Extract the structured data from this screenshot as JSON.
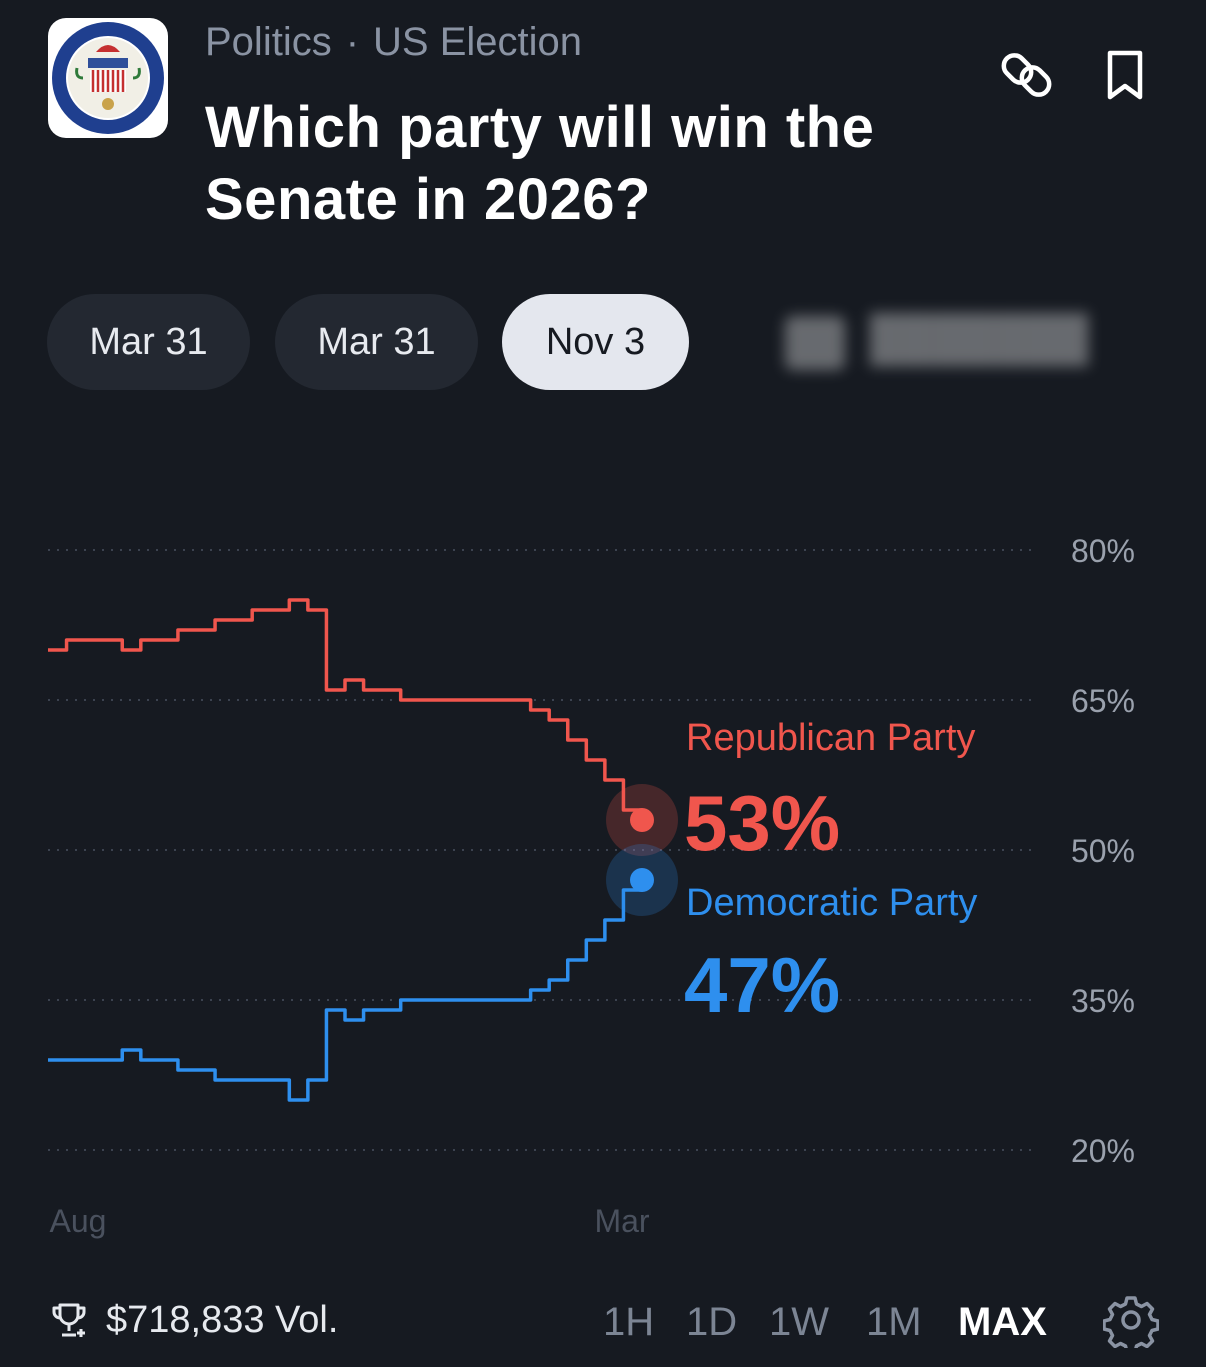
{
  "header": {
    "category": "Politics",
    "separator": "·",
    "subcategory": "US Election",
    "title": "Which party will win the Senate in 2026?",
    "logo_icon": "us-senate-seal-icon"
  },
  "actions": {
    "link_icon": "link-icon",
    "bookmark_icon": "bookmark-icon"
  },
  "date_tabs": [
    {
      "label": "Mar 31",
      "active": false
    },
    {
      "label": "Mar 31",
      "active": false
    },
    {
      "label": "Nov 3",
      "active": true
    }
  ],
  "footer": {
    "volume": "$718,833 Vol.",
    "trophy_icon": "trophy-icon",
    "settings_icon": "gear-icon",
    "ranges": [
      "1H",
      "1D",
      "1W",
      "1M",
      "MAX"
    ],
    "active_range": "MAX"
  },
  "colors": {
    "background": "#161a21",
    "republican": "#f0564d",
    "democratic": "#2e8fee",
    "grid": "#3c4350",
    "axis_text": "#9aa1ad",
    "date_text": "#4a515e"
  },
  "chart_data": {
    "type": "line",
    "yaxis_ticks": [
      "80%",
      "65%",
      "50%",
      "35%",
      "20%"
    ],
    "ylim": [
      20,
      80
    ],
    "xaxis_ticks": [
      "Aug",
      "Mar"
    ],
    "grid": "horizontal dotted",
    "series": [
      {
        "name": "Republican Party",
        "color": "#f0564d",
        "current_label": "53%",
        "values": [
          70,
          71,
          71,
          71,
          70,
          71,
          71,
          72,
          72,
          73,
          73,
          74,
          74,
          75,
          74,
          66,
          67,
          66,
          66,
          65,
          65,
          65,
          65,
          65,
          65,
          65,
          64,
          63,
          61,
          59,
          57,
          54,
          53
        ]
      },
      {
        "name": "Democratic Party",
        "color": "#2e8fee",
        "current_label": "47%",
        "values": [
          29,
          29,
          29,
          29,
          30,
          29,
          29,
          28,
          28,
          27,
          27,
          27,
          27,
          25,
          27,
          34,
          33,
          34,
          34,
          35,
          35,
          35,
          35,
          35,
          35,
          35,
          36,
          37,
          39,
          41,
          43,
          46,
          47
        ]
      }
    ]
  }
}
